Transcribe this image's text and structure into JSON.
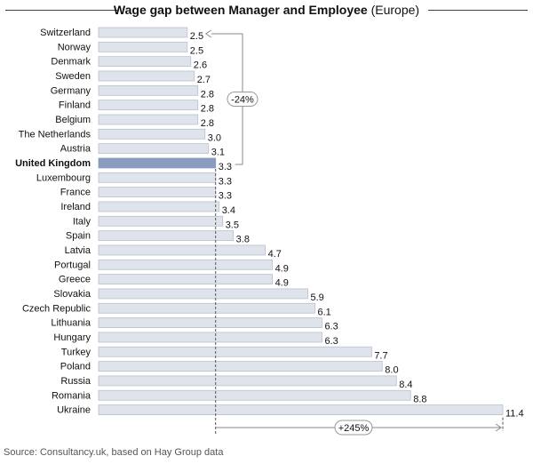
{
  "chart_data": {
    "type": "bar",
    "orientation": "horizontal",
    "title": "Wage gap between Manager and Employee",
    "subtitle": "(Europe)",
    "categories": [
      "Switzerland",
      "Norway",
      "Denmark",
      "Sweden",
      "Germany",
      "Finland",
      "Belgium",
      "The Netherlands",
      "Austria",
      "United Kingdom",
      "Luxembourg",
      "France",
      "Ireland",
      "Italy",
      "Spain",
      "Latvia",
      "Portugal",
      "Greece",
      "Slovakia",
      "Czech Republic",
      "Lithuania",
      "Hungary",
      "Turkey",
      "Poland",
      "Russia",
      "Romania",
      "Ukraine"
    ],
    "values": [
      2.5,
      2.5,
      2.6,
      2.7,
      2.8,
      2.8,
      2.8,
      3.0,
      3.1,
      3.3,
      3.3,
      3.3,
      3.4,
      3.5,
      3.8,
      4.7,
      4.9,
      4.9,
      5.9,
      6.1,
      6.3,
      6.3,
      7.7,
      8.0,
      8.4,
      8.8,
      11.4
    ],
    "highlight_category": "United Kingdom",
    "reference_value": 3.3,
    "xlim": [
      0,
      11.4
    ],
    "grid": false,
    "annotations": [
      {
        "label": "-24%",
        "from": "United Kingdom",
        "to": "Switzerland"
      },
      {
        "label": "+245%",
        "from_value": 3.3,
        "to_value": 11.4
      }
    ],
    "colors": {
      "bar": "#dfe3ec",
      "bar_border": "#b9c0cf",
      "highlight": "#8a9dbf",
      "reference_line": "#555555"
    }
  },
  "source": "Source: Consultancy.uk, based on Hay Group data"
}
